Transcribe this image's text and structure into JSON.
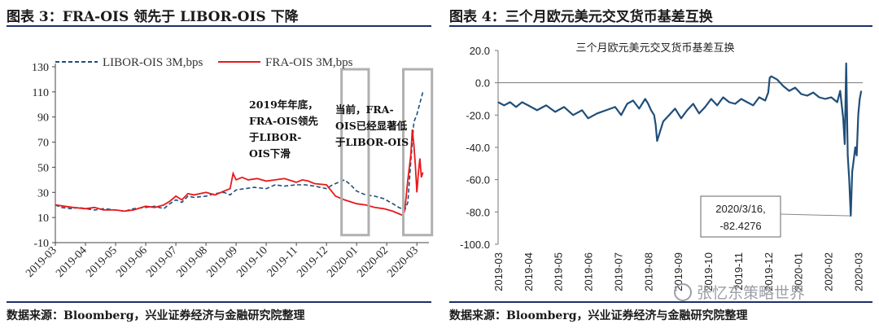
{
  "left_figure": {
    "title": "图表 3：FRA-OIS 领先于 LIBOR-OIS 下降",
    "source": "数据来源：Bloomberg，兴业证券经济与金融研究院整理"
  },
  "right_figure": {
    "title": "图表 4：三个月欧元美元交叉货币基差互换",
    "source": "数据来源：Bloomberg，兴业证券经济与金融研究院整理"
  },
  "watermark": "张忆东策略世界",
  "colors": {
    "libor": "#1f4e79",
    "fra": "#e8191c",
    "basis": "#1f4e79",
    "box": "#b0b0b0",
    "rule": "#1d2f6b"
  },
  "chart_data": [
    {
      "type": "line",
      "title": "",
      "xlabel": "",
      "ylabel": "",
      "ylim": [
        -10,
        130
      ],
      "yticks": [
        -10,
        10,
        30,
        50,
        70,
        90,
        110,
        130
      ],
      "x_tick_labels": [
        "2019-03",
        "2019-04",
        "2019-05",
        "2019-06",
        "2019-07",
        "2019-08",
        "2019-09",
        "2019-10",
        "2019-11",
        "2019-12",
        "2020-01",
        "2020-02",
        "2020-03"
      ],
      "xlim": [
        0,
        12.4
      ],
      "legend_position": "top",
      "series": [
        {
          "name": "LIBOR-OIS 3M,bps",
          "style": "dashed",
          "x": [
            0,
            0.2,
            0.5,
            0.8,
            1.0,
            1.3,
            1.6,
            2.0,
            2.3,
            2.6,
            3.0,
            3.3,
            3.6,
            3.8,
            4.0,
            4.2,
            4.4,
            4.6,
            5.0,
            5.3,
            5.6,
            5.8,
            6.0,
            6.3,
            6.6,
            7.0,
            7.3,
            7.6,
            8.0,
            8.3,
            8.6,
            9.0,
            9.2,
            9.4,
            9.6,
            9.8,
            10.0,
            10.3,
            10.6,
            10.9,
            11.2,
            11.4,
            11.5,
            11.6,
            11.7,
            11.8,
            11.9,
            12.0,
            12.1,
            12.2
          ],
          "values": [
            20,
            18,
            17,
            18,
            17,
            16,
            17,
            16,
            15,
            17,
            18,
            19,
            17,
            21,
            24,
            22,
            27,
            26,
            27,
            29,
            30,
            28,
            32,
            33,
            34,
            33,
            36,
            35,
            36,
            36,
            35,
            33,
            36,
            38,
            40,
            36,
            31,
            28,
            27,
            25,
            21,
            18,
            17,
            16,
            22,
            55,
            86,
            92,
            101,
            110
          ]
        },
        {
          "name": "FRA-OIS 3M,bps",
          "style": "solid",
          "x": [
            0,
            0.3,
            0.6,
            1.0,
            1.3,
            1.6,
            2.0,
            2.3,
            2.6,
            3.0,
            3.3,
            3.6,
            3.8,
            4.0,
            4.2,
            4.4,
            4.6,
            5.0,
            5.3,
            5.6,
            5.8,
            5.9,
            6.0,
            6.2,
            6.4,
            6.7,
            7.0,
            7.3,
            7.6,
            8.0,
            8.2,
            8.4,
            8.6,
            9.0,
            9.3,
            9.6,
            10.0,
            10.3,
            10.6,
            10.9,
            11.2,
            11.4,
            11.5,
            11.55,
            11.6,
            11.7,
            11.8,
            11.85,
            11.9,
            11.95,
            12.0,
            12.05,
            12.1,
            12.15,
            12.2
          ],
          "values": [
            20,
            19,
            18,
            17,
            18,
            16,
            16,
            15,
            16,
            19,
            18,
            20,
            23,
            27,
            24,
            29,
            28,
            30,
            28,
            31,
            33,
            45,
            40,
            42,
            40,
            41,
            39,
            40,
            41,
            38,
            40,
            39,
            37,
            36,
            27,
            24,
            21,
            20,
            18,
            17,
            15,
            13,
            12,
            12,
            16,
            40,
            60,
            80,
            68,
            52,
            30,
            45,
            57,
            42,
            46
          ]
        }
      ],
      "annotations": [
        {
          "text_lines": [
            "2019年年底，",
            "FRA-OIS领先",
            "于LIBOR-",
            "OIS下滑"
          ]
        },
        {
          "text_lines": [
            "当前，FRA-",
            "OIS已经显著低",
            "于LIBOR-OIS"
          ]
        }
      ],
      "highlight_boxes": [
        {
          "x_range": [
            9.5,
            10.4
          ],
          "y_range": [
            -4,
            128
          ]
        },
        {
          "x_range": [
            11.55,
            12.5
          ],
          "y_range": [
            -4,
            128
          ]
        }
      ]
    },
    {
      "type": "line",
      "title": "三个月欧元美元交叉货币基差互换",
      "xlabel": "",
      "ylabel": "",
      "ylim": [
        -100,
        20
      ],
      "yticks": [
        -100.0,
        -80.0,
        -60.0,
        -40.0,
        -20.0,
        0.0,
        20.0
      ],
      "x_tick_labels": [
        "2019-03",
        "2019-04",
        "2019-05",
        "2019-06",
        "2019-07",
        "2019-08",
        "2019-09",
        "2019-10",
        "2019-11",
        "2019-12",
        "2020-01",
        "2020-02",
        "2020-03"
      ],
      "xlim": [
        0,
        12.15
      ],
      "grid": false,
      "series": [
        {
          "name": "",
          "style": "solid",
          "x": [
            0,
            0.2,
            0.4,
            0.6,
            0.8,
            1.0,
            1.3,
            1.6,
            1.9,
            2.2,
            2.5,
            2.8,
            3.0,
            3.3,
            3.6,
            3.9,
            4.1,
            4.3,
            4.5,
            4.7,
            4.9,
            5.0,
            5.1,
            5.2,
            5.25,
            5.3,
            5.4,
            5.5,
            5.7,
            5.9,
            6.1,
            6.3,
            6.5,
            6.7,
            6.9,
            7.1,
            7.3,
            7.5,
            7.7,
            7.9,
            8.1,
            8.3,
            8.5,
            8.7,
            8.9,
            9.0,
            9.05,
            9.1,
            9.3,
            9.5,
            9.7,
            9.9,
            10.1,
            10.3,
            10.5,
            10.7,
            10.9,
            11.1,
            11.3,
            11.4,
            11.5,
            11.55,
            11.6,
            11.65,
            11.7,
            11.75,
            11.8,
            11.85,
            11.9,
            11.95,
            12.0,
            12.05,
            12.1
          ],
          "values": [
            -12,
            -14,
            -12,
            -15,
            -12,
            -14,
            -17,
            -14,
            -18,
            -15,
            -20,
            -17,
            -22,
            -19,
            -17,
            -15,
            -20,
            -13,
            -11,
            -16,
            -10,
            -13,
            -17,
            -20,
            -26,
            -36,
            -30,
            -24,
            -20,
            -16,
            -22,
            -17,
            -13,
            -19,
            -15,
            -10,
            -14,
            -9,
            -12,
            -13,
            -10,
            -12,
            -14,
            -9,
            -11,
            -6,
            3,
            4,
            2,
            -2,
            -5,
            -3,
            -7,
            -8,
            -6,
            -9,
            -10,
            -9,
            -12,
            -5,
            -22,
            -38,
            12,
            -45,
            -60,
            -82.4276,
            -55,
            -48,
            -40,
            -45,
            -20,
            -10,
            -5
          ]
        }
      ],
      "annotations": [
        {
          "text_lines": [
            "2020/3/16,",
            "-82.4276"
          ]
        }
      ]
    }
  ]
}
